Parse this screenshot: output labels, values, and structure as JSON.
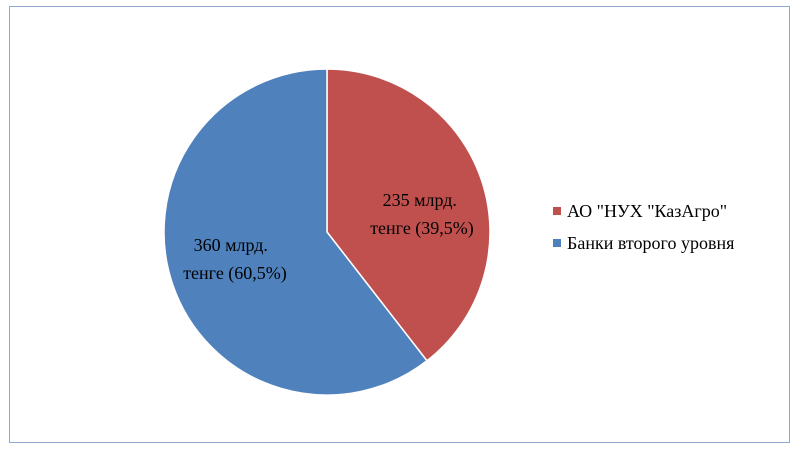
{
  "chart_data": {
    "type": "pie",
    "categories": [
      "АО \"НУХ \"КазАгро\"",
      "Банки второго уровня"
    ],
    "values": [
      235,
      360
    ],
    "percent": [
      39.5,
      60.5
    ],
    "colors": [
      "#c0504d",
      "#4f81bd"
    ],
    "slice_labels": [
      [
        "235 млрд.",
        "тенге  (39,5%)"
      ],
      [
        "360 млрд.",
        "тенге (60,5%)"
      ]
    ],
    "legend_placement": "right"
  }
}
